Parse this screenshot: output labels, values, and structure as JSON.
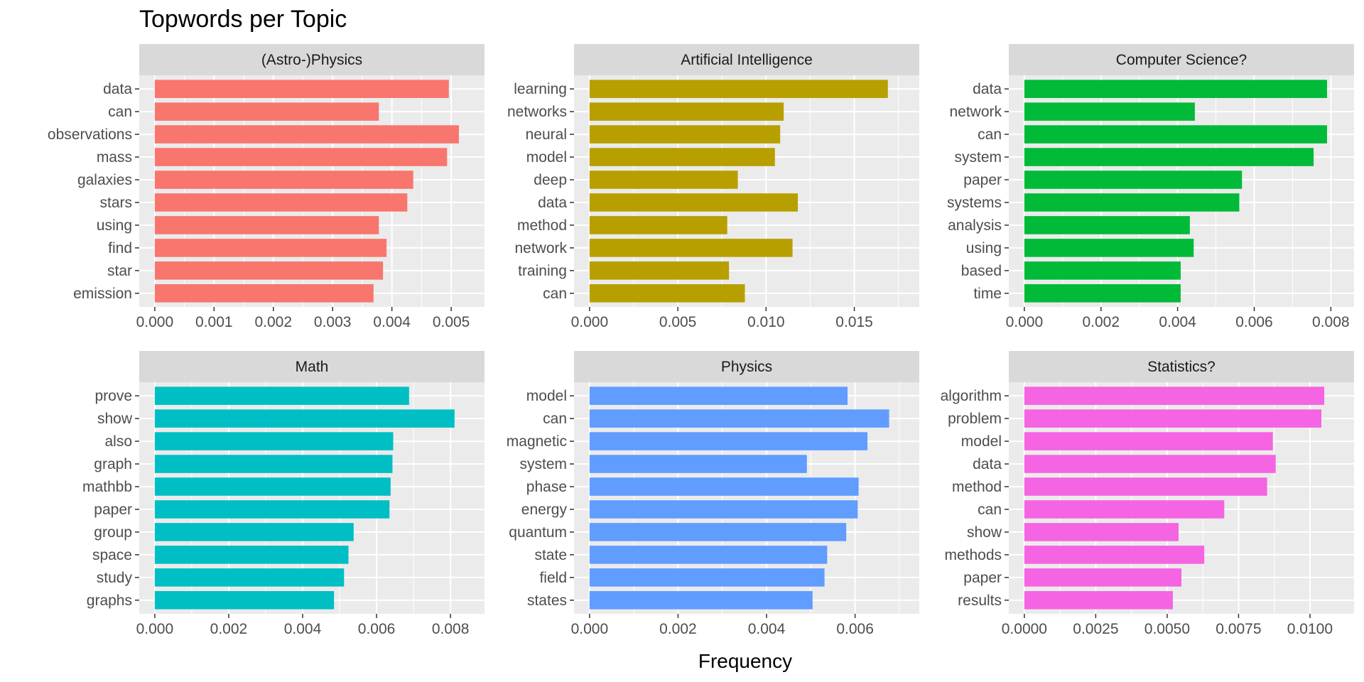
{
  "chart_data": {
    "type": "bar",
    "title": "Topwords per Topic",
    "xlabel": "Frequency",
    "ylabel": "",
    "legend": "none",
    "grid": true,
    "facets": [
      {
        "name": "(Astro-)Physics",
        "color": "#F8766D",
        "xlim": [
          0,
          0.0053
        ],
        "ticks": [
          "0.000",
          "0.001",
          "0.002",
          "0.003",
          "0.004",
          "0.005"
        ],
        "categories": [
          "data",
          "can",
          "observations",
          "mass",
          "galaxies",
          "stars",
          "using",
          "find",
          "star",
          "emission"
        ],
        "values": [
          0.00496,
          0.00378,
          0.00513,
          0.00493,
          0.00436,
          0.00426,
          0.00378,
          0.00391,
          0.00385,
          0.00369
        ]
      },
      {
        "name": "Artificial Intelligence",
        "color": "#B79F00",
        "xlim": [
          0,
          0.0178
        ],
        "ticks": [
          "0.000",
          "0.005",
          "0.010",
          "0.015"
        ],
        "categories": [
          "learning",
          "networks",
          "neural",
          "model",
          "deep",
          "data",
          "method",
          "network",
          "training",
          "can"
        ],
        "values": [
          0.0169,
          0.011,
          0.0108,
          0.0105,
          0.0084,
          0.0118,
          0.0078,
          0.0115,
          0.0079,
          0.0088
        ]
      },
      {
        "name": "Computer Science?",
        "color": "#00BA38",
        "xlim": [
          0,
          0.0082
        ],
        "ticks": [
          "0.000",
          "0.002",
          "0.004",
          "0.006",
          "0.008"
        ],
        "categories": [
          "data",
          "network",
          "can",
          "system",
          "paper",
          "systems",
          "analysis",
          "using",
          "based",
          "time"
        ],
        "values": [
          0.0079,
          0.00445,
          0.0079,
          0.00755,
          0.00568,
          0.00561,
          0.00432,
          0.00442,
          0.00408,
          0.00408
        ]
      },
      {
        "name": "Math",
        "color": "#00BFC4",
        "xlim": [
          0,
          0.0085
        ],
        "ticks": [
          "0.000",
          "0.002",
          "0.004",
          "0.006",
          "0.008"
        ],
        "categories": [
          "prove",
          "show",
          "also",
          "graph",
          "mathbb",
          "paper",
          "group",
          "space",
          "study",
          "graphs"
        ],
        "values": [
          0.00688,
          0.00811,
          0.00645,
          0.00643,
          0.00638,
          0.00635,
          0.00538,
          0.00524,
          0.00512,
          0.00485
        ]
      },
      {
        "name": "Physics",
        "color": "#619CFF",
        "xlim": [
          0,
          0.0071
        ],
        "ticks": [
          "0.000",
          "0.002",
          "0.004",
          "0.006"
        ],
        "categories": [
          "model",
          "can",
          "magnetic",
          "system",
          "phase",
          "energy",
          "quantum",
          "state",
          "field",
          "states"
        ],
        "values": [
          0.00583,
          0.00677,
          0.00628,
          0.00491,
          0.00608,
          0.00606,
          0.0058,
          0.00537,
          0.00531,
          0.00504
        ]
      },
      {
        "name": "Statistics?",
        "color": "#F564E3",
        "xlim": [
          0,
          0.011
        ],
        "ticks": [
          "0.0000",
          "0.0025",
          "0.0050",
          "0.0075",
          "0.0100"
        ],
        "categories": [
          "algorithm",
          "problem",
          "model",
          "data",
          "method",
          "can",
          "show",
          "methods",
          "paper",
          "results"
        ],
        "values": [
          0.0105,
          0.0104,
          0.0087,
          0.0088,
          0.0085,
          0.007,
          0.0054,
          0.0063,
          0.0055,
          0.0052
        ]
      }
    ]
  }
}
